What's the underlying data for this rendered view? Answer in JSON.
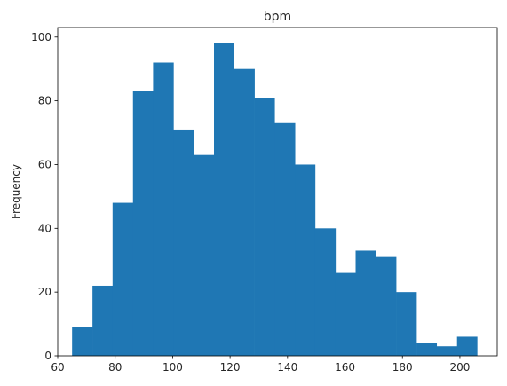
{
  "chart_data": {
    "type": "bar",
    "title": "bpm",
    "xlabel": "",
    "ylabel": "Frequency",
    "bar_color": "#1f77b4",
    "grid": false,
    "xlim": [
      60,
      213
    ],
    "ylim": [
      0,
      103
    ],
    "xticks": [
      60,
      80,
      100,
      120,
      140,
      160,
      180,
      200
    ],
    "yticks": [
      0,
      20,
      40,
      60,
      80,
      100
    ],
    "bins": [
      {
        "x0": 65.0,
        "x1": 72.1,
        "count": 9
      },
      {
        "x0": 72.1,
        "x1": 79.1,
        "count": 22
      },
      {
        "x0": 79.1,
        "x1": 86.2,
        "count": 48
      },
      {
        "x0": 86.2,
        "x1": 93.2,
        "count": 83
      },
      {
        "x0": 93.2,
        "x1": 100.3,
        "count": 92
      },
      {
        "x0": 100.3,
        "x1": 107.3,
        "count": 71
      },
      {
        "x0": 107.3,
        "x1": 114.4,
        "count": 63
      },
      {
        "x0": 114.4,
        "x1": 121.4,
        "count": 98
      },
      {
        "x0": 121.4,
        "x1": 128.5,
        "count": 90
      },
      {
        "x0": 128.5,
        "x1": 135.5,
        "count": 81
      },
      {
        "x0": 135.5,
        "x1": 142.6,
        "count": 73
      },
      {
        "x0": 142.6,
        "x1": 149.6,
        "count": 60
      },
      {
        "x0": 149.6,
        "x1": 156.7,
        "count": 40
      },
      {
        "x0": 156.7,
        "x1": 163.7,
        "count": 26
      },
      {
        "x0": 163.7,
        "x1": 170.8,
        "count": 33
      },
      {
        "x0": 170.8,
        "x1": 177.8,
        "count": 31
      },
      {
        "x0": 177.8,
        "x1": 184.9,
        "count": 20
      },
      {
        "x0": 184.9,
        "x1": 191.9,
        "count": 4
      },
      {
        "x0": 191.9,
        "x1": 199.0,
        "count": 3
      },
      {
        "x0": 199.0,
        "x1": 206.0,
        "count": 6
      }
    ]
  }
}
